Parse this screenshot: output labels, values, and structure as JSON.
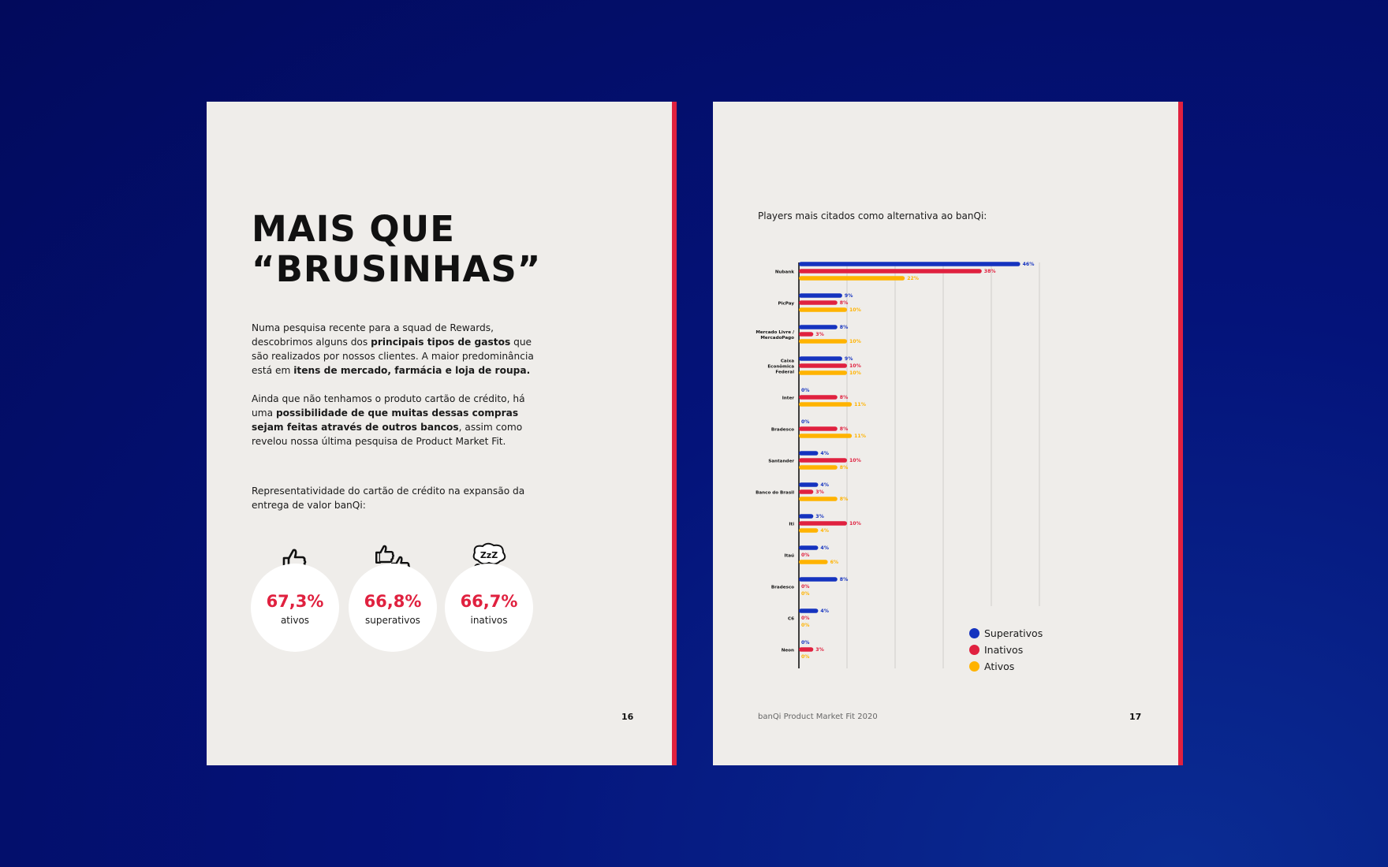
{
  "left_page": {
    "title_line1": "MAIS QUE",
    "title_line2": "“BRUSINHAS”",
    "paragraph1": [
      {
        "text": "Numa pesquisa recente para a squad de Rewards, descobrimos alguns dos ",
        "bold": false
      },
      {
        "text": "principais tipos de gastos",
        "bold": true
      },
      {
        "text": " que são realizados por nossos clientes.  A maior predominância está em ",
        "bold": false
      },
      {
        "text": "itens de mercado, farmácia e loja de roupa.",
        "bold": true
      }
    ],
    "paragraph2": [
      {
        "text": "Ainda que não tenhamos o produto cartão de crédito, há uma ",
        "bold": false
      },
      {
        "text": "possibilidade de que muitas dessas compras sejam feitas através de outros bancos",
        "bold": true
      },
      {
        "text": ", assim como revelou nossa última pesquisa de Product Market Fit.",
        "bold": false
      }
    ],
    "paragraph3": "Representatividade do cartão de crédito na expansão da entrega de valor banQi:",
    "stats": [
      {
        "value": "67,3%",
        "label": "ativos",
        "icon": "thumbs-up-icon"
      },
      {
        "value": "66,8%",
        "label": "superativos",
        "icon": "double-thumbs-up-icon"
      },
      {
        "value": "66,7%",
        "label": "inativos",
        "icon": "sleeping-zzz-icon"
      }
    ],
    "page_number": "16"
  },
  "right_page": {
    "chart_title": "Players mais citados como alternativa ao banQi:",
    "footer": "banQi Product Market Fit 2020",
    "page_number": "17"
  },
  "colors": {
    "accent_red": "#e0213f",
    "superativos": "#1533bf",
    "inativos": "#e0213f",
    "ativos": "#ffb300"
  },
  "chart_data": {
    "type": "bar",
    "orientation": "horizontal",
    "title": "Players mais citados como alternativa ao banQi:",
    "categories": [
      [
        "Nubank"
      ],
      [
        "PicPay"
      ],
      [
        "Mercado Livre /",
        "MercadoPago"
      ],
      [
        "Caixa",
        "Econômica",
        "Federal"
      ],
      [
        "Inter"
      ],
      [
        "Bradesco"
      ],
      [
        "Santander"
      ],
      [
        "Banco do Brasil"
      ],
      [
        "Iti"
      ],
      [
        "Itaú"
      ],
      [
        "Bradesco"
      ],
      [
        "C6"
      ],
      [
        "Neon"
      ]
    ],
    "series": [
      {
        "name": "Superativos",
        "color": "#1533bf",
        "values": [
          46,
          9,
          8,
          9,
          0,
          0,
          4,
          4,
          3,
          4,
          8,
          4,
          0
        ]
      },
      {
        "name": "Inativos",
        "color": "#e0213f",
        "values": [
          38,
          8,
          3,
          10,
          8,
          8,
          10,
          3,
          10,
          0,
          0,
          0,
          3
        ]
      },
      {
        "name": "Ativos",
        "color": "#ffb300",
        "values": [
          22,
          10,
          10,
          10,
          11,
          11,
          8,
          8,
          4,
          6,
          0,
          0,
          0
        ]
      }
    ],
    "xlim": [
      0,
      50
    ],
    "grid": true,
    "legend": "bottom-right",
    "legend_entries": [
      "Superativos",
      "Inativos",
      "Ativos"
    ]
  }
}
